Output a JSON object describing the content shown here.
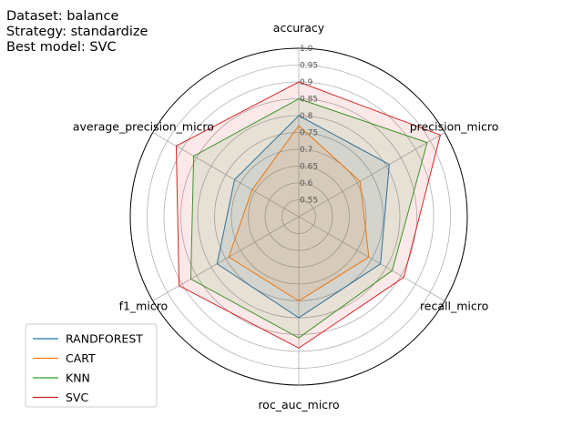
{
  "info_lines": [
    "Dataset: balance",
    "Strategy: standardize",
    "Best model: SVC"
  ],
  "chart_data": {
    "type": "radar",
    "axes": [
      "accuracy",
      "precision_micro",
      "recall_micro",
      "roc_auc_micro",
      "f1_micro",
      "average_precision_micro"
    ],
    "r_range": [
      0.5,
      1.0
    ],
    "r_ticks": [
      "0.55",
      "0.6",
      "0.65",
      "0.7",
      "0.75",
      "0.8",
      "0.85",
      "0.9",
      "0.95",
      "1.0"
    ],
    "grid": true,
    "legend_position": "lower-left",
    "series": [
      {
        "name": "RANDFOREST",
        "color": "#1f77b4",
        "values": [
          0.8,
          0.81,
          0.78,
          0.8,
          0.78,
          0.72
        ]
      },
      {
        "name": "CART",
        "color": "#ff7f0e",
        "values": [
          0.77,
          0.71,
          0.74,
          0.75,
          0.74,
          0.66
        ]
      },
      {
        "name": "KNN",
        "color": "#2ca02c",
        "values": [
          0.85,
          0.94,
          0.82,
          0.86,
          0.87,
          0.86
        ]
      },
      {
        "name": "SVC",
        "color": "#d62728",
        "values": [
          0.9,
          0.985,
          0.86,
          0.89,
          0.91,
          0.92
        ]
      }
    ]
  }
}
